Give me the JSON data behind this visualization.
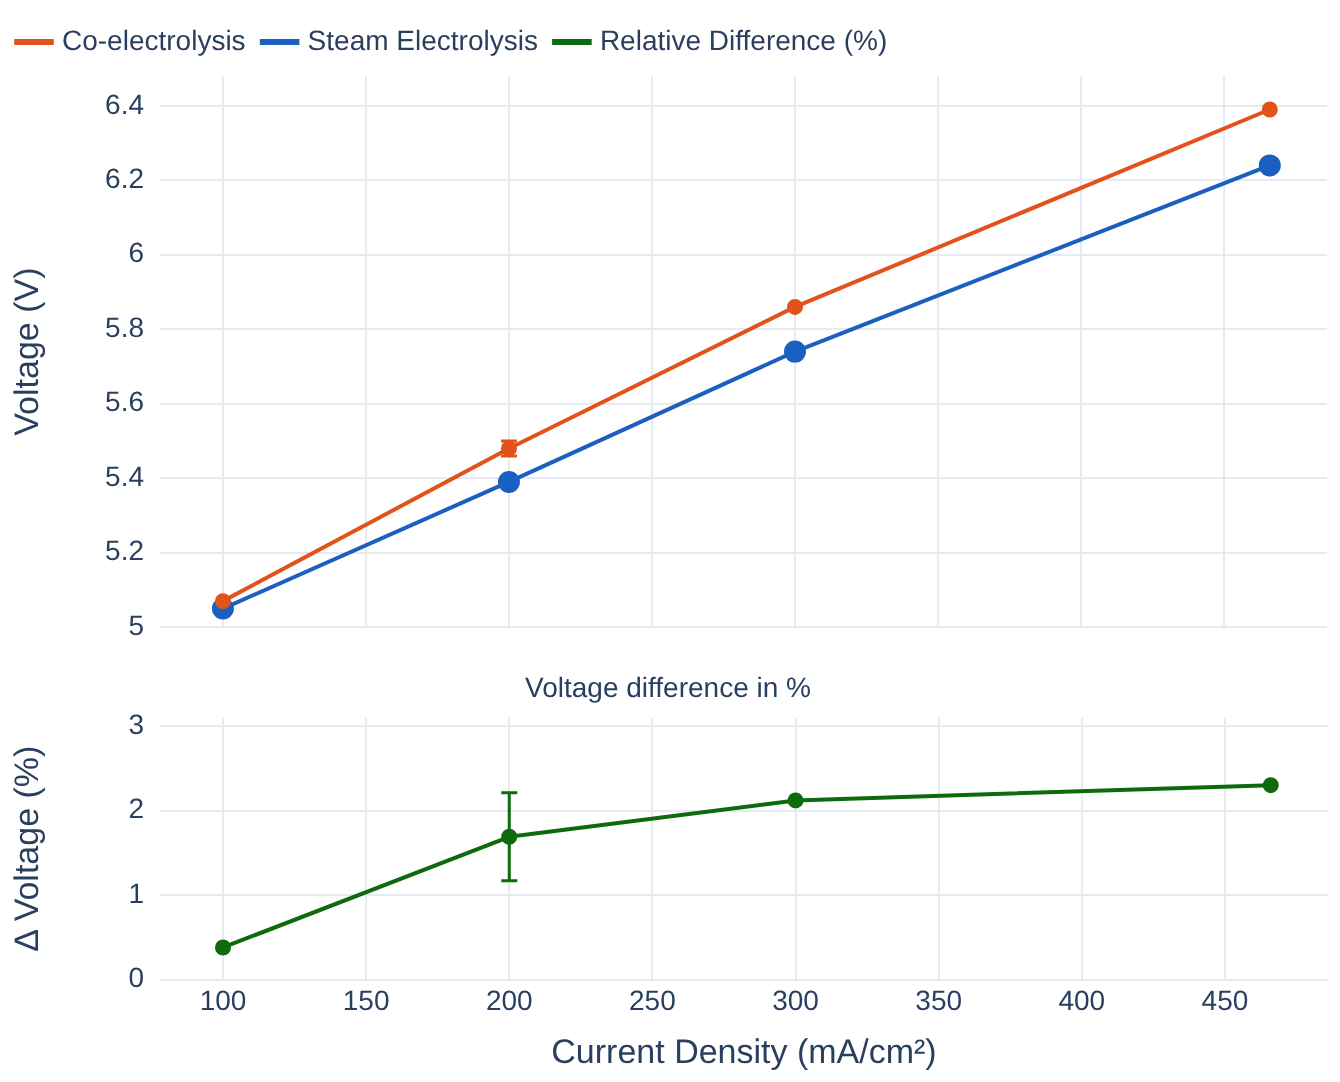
{
  "chart_data": [
    {
      "type": "line",
      "ylabel": "Voltage (V)",
      "x": [
        100,
        200,
        300,
        466
      ],
      "xlim": [
        78,
        486
      ],
      "xticks": [
        100,
        150,
        200,
        250,
        300,
        350,
        400,
        450
      ],
      "ylim": [
        5,
        6.48
      ],
      "yticks": [
        5,
        5.2,
        5.4,
        5.6,
        5.8,
        6,
        6.2,
        6.4
      ],
      "tick_labels": "y",
      "grid": true,
      "legend": "top left",
      "marker": "circle",
      "series": [
        {
          "name": "Co-electrolysis",
          "color": "#e2531b",
          "values": [
            5.07,
            5.48,
            5.86,
            6.39
          ],
          "errors": [
            null,
            0.02,
            null,
            null
          ]
        },
        {
          "name": "Steam Electrolysis",
          "color": "#1b5fc1",
          "values": [
            5.05,
            5.39,
            5.74,
            6.24
          ]
        }
      ]
    },
    {
      "type": "line",
      "title": "Voltage difference in %",
      "xlabel": "Current Density (mA/cm²)",
      "ylabel": "Δ Voltage (%)",
      "x": [
        100,
        200,
        300,
        466
      ],
      "xlim": [
        78,
        486
      ],
      "xticks": [
        100,
        150,
        200,
        250,
        300,
        350,
        400,
        450
      ],
      "ylim": [
        0,
        3.1
      ],
      "yticks": [
        0,
        1,
        2,
        3
      ],
      "grid": true,
      "marker": "circle",
      "series": [
        {
          "name": "Relative Difference (%)",
          "color": "#0d6b0d",
          "values": [
            0.38,
            1.69,
            2.12,
            2.3
          ],
          "errors": [
            null,
            [
              1.17,
              2.21
            ],
            null,
            null
          ]
        }
      ]
    }
  ]
}
